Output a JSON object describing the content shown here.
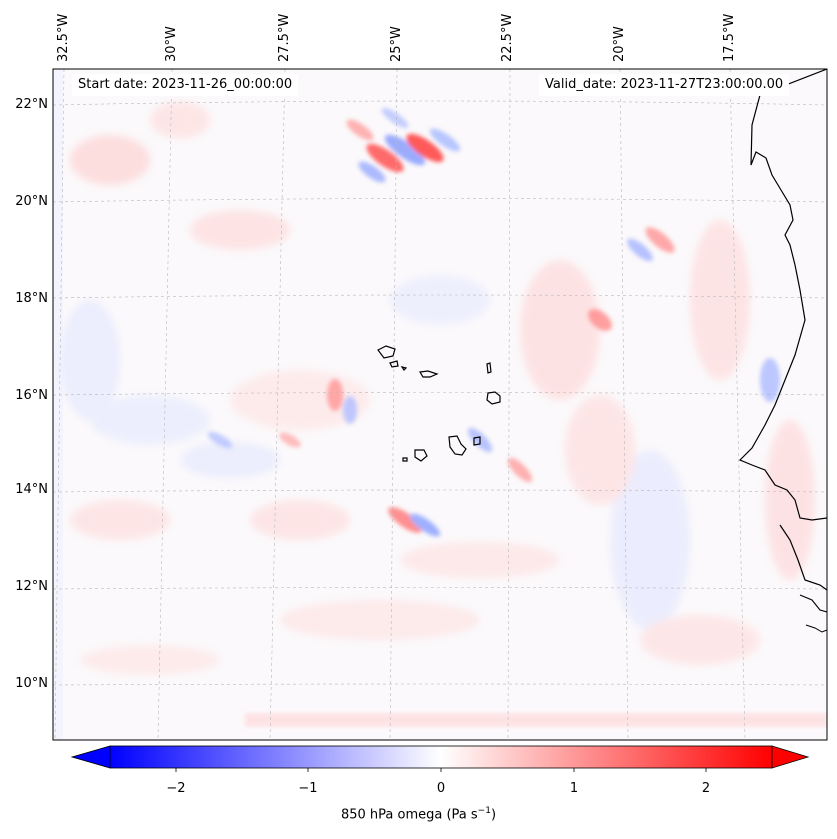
{
  "map": {
    "start_date": "Start date: 2023-11-26_00:00:00",
    "valid_date": "Valid_date: 2023-11-27T23:00:00.00",
    "lon_labels": [
      "32.5°W",
      "30°W",
      "27.5°W",
      "25°W",
      "22.5°W",
      "20°W",
      "17.5°W"
    ],
    "lat_labels": [
      "22°N",
      "20°N",
      "18°N",
      "16°N",
      "14°N",
      "12°N",
      "10°N"
    ],
    "variable": "850 hPa omega",
    "colormap": "bwr",
    "coastline_color": "#000000",
    "regions_shown": [
      "Cape Verde islands",
      "West African coast"
    ]
  },
  "colorbar": {
    "ticks": [
      "−2",
      "−1",
      "0",
      "1",
      "2"
    ],
    "tick_values": [
      -2,
      -1,
      0,
      1,
      2
    ],
    "range": [
      -2.6,
      2.6
    ],
    "extend": "both",
    "label_main": "850 hPa omega (Pa s",
    "label_sup": "−1",
    "label_end": ")",
    "colors": {
      "min": "#0000ff",
      "mid": "#ffffff",
      "max": "#ff0000"
    }
  }
}
